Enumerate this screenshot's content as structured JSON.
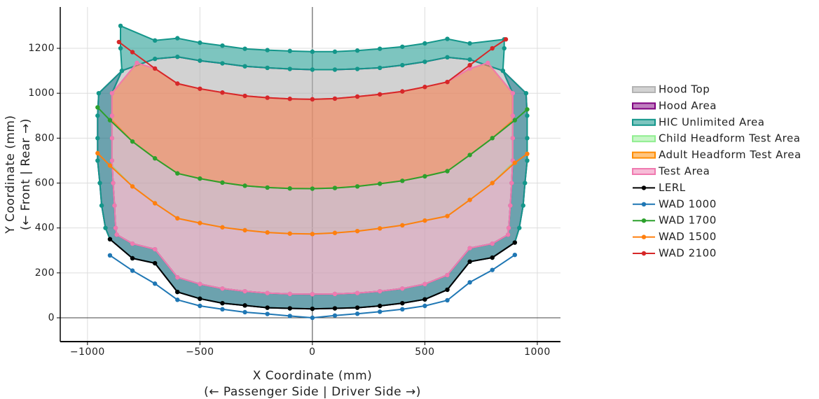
{
  "chart_data": {
    "type": "area-line",
    "xlabel": "X Coordinate (mm)",
    "xlabel_sub": "(← Passenger Side | Driver Side →)",
    "ylabel": "Y Coordinate (mm)",
    "ylabel_sub": "(← Front | Rear →)",
    "xlim": [
      -1121,
      1103
    ],
    "ylim": [
      -106,
      1384
    ],
    "xticks": [
      {
        "value": -1000,
        "label": "−1000"
      },
      {
        "value": -500,
        "label": "−500"
      },
      0,
      500,
      1000
    ],
    "yticks": [
      0,
      200,
      400,
      600,
      800,
      1000,
      1200
    ],
    "grid": true,
    "series": [
      {
        "name": "Hood Top",
        "color": "#b4b4b4",
        "fill": true,
        "fill_opacity": 0.6,
        "markers": false,
        "x": [
          -847,
          -700,
          -600,
          -500,
          -400,
          -300,
          -200,
          -100,
          0,
          100,
          200,
          300,
          400,
          500,
          600,
          700,
          847,
          891,
          891,
          891,
          891,
          886,
          880,
          873,
          870,
          800,
          700,
          600,
          500,
          400,
          300,
          200,
          100,
          0,
          -100,
          -200,
          -300,
          -400,
          -500,
          -600,
          -700,
          -800,
          -870,
          -875,
          -880,
          -886,
          -891,
          -891,
          -891,
          -891
        ],
        "y": [
          1100,
          1153,
          1162,
          1145,
          1133,
          1120,
          1113,
          1108,
          1105,
          1105,
          1108,
          1113,
          1125,
          1140,
          1160,
          1150,
          1100,
          1000,
          900,
          800,
          700,
          600,
          500,
          400,
          370,
          330,
          310,
          190,
          150,
          130,
          118,
          110,
          106,
          105,
          106,
          110,
          118,
          130,
          150,
          180,
          305,
          330,
          370,
          400,
          500,
          600,
          700,
          800,
          900,
          1000
        ]
      },
      {
        "name": "Hood Area",
        "color": "#800080",
        "fill": true,
        "fill_opacity": 0.3,
        "markers": false,
        "x": [
          -847,
          -700,
          -600,
          -500,
          -400,
          -300,
          -200,
          -100,
          0,
          100,
          200,
          300,
          400,
          500,
          600,
          700,
          847,
          950,
          955,
          955,
          955,
          945,
          937,
          920,
          900,
          800,
          700,
          600,
          500,
          400,
          300,
          200,
          100,
          0,
          -100,
          -200,
          -300,
          -400,
          -500,
          -600,
          -700,
          -800,
          -900,
          -920,
          -937,
          -945,
          -955,
          -955,
          -955,
          -950,
          null,
          -847,
          -700,
          -600,
          -500,
          -400,
          -300,
          -200,
          -100,
          0,
          100,
          200,
          300,
          400,
          500,
          600,
          700,
          847,
          891,
          891,
          891,
          891,
          886,
          880,
          873,
          870,
          800,
          700,
          600,
          500,
          400,
          300,
          200,
          100,
          0,
          -100,
          -200,
          -300,
          -400,
          -500,
          -600,
          -700,
          -800,
          -870,
          -875,
          -880,
          -886,
          -891,
          -891,
          -891,
          -891
        ],
        "y": [
          1100,
          1153,
          1162,
          1145,
          1133,
          1120,
          1113,
          1108,
          1105,
          1105,
          1108,
          1113,
          1125,
          1140,
          1160,
          1150,
          1100,
          1000,
          900,
          800,
          700,
          600,
          500,
          400,
          335,
          268,
          250,
          125,
          82,
          65,
          53,
          45,
          42,
          40,
          42,
          45,
          55,
          65,
          85,
          115,
          243,
          265,
          350,
          400,
          500,
          600,
          700,
          800,
          900,
          1000,
          null,
          1100,
          1153,
          1162,
          1145,
          1133,
          1120,
          1113,
          1108,
          1105,
          1105,
          1108,
          1113,
          1125,
          1140,
          1160,
          1150,
          1100,
          1000,
          900,
          800,
          700,
          600,
          500,
          400,
          370,
          330,
          310,
          190,
          150,
          130,
          118,
          110,
          106,
          105,
          106,
          110,
          118,
          130,
          150,
          180,
          305,
          330,
          370,
          400,
          500,
          600,
          700,
          800,
          900,
          1000
        ]
      },
      {
        "name": "HIC Unlimited Area",
        "color": "#13968a",
        "fill": true,
        "fill_opacity": 0.55,
        "markers": true,
        "x": [
          -853,
          -700,
          -600,
          -500,
          -400,
          -300,
          -200,
          -100,
          0,
          100,
          200,
          300,
          400,
          500,
          600,
          700,
          853,
          853,
          847,
          950,
          955,
          955,
          955,
          945,
          937,
          920,
          900,
          800,
          700,
          600,
          500,
          400,
          300,
          200,
          100,
          0,
          -100,
          -200,
          -300,
          -400,
          -500,
          -600,
          -700,
          -800,
          -900,
          -920,
          -937,
          -945,
          -955,
          -955,
          -955,
          -950,
          -847,
          -853,
          null,
          -847,
          -700,
          -600,
          -500,
          -400,
          -300,
          -200,
          -100,
          0,
          100,
          200,
          300,
          400,
          500,
          600,
          700,
          847,
          891,
          891,
          891,
          891,
          886,
          880,
          873,
          870,
          800,
          700,
          600,
          500,
          400,
          300,
          200,
          100,
          0,
          -100,
          -200,
          -300,
          -400,
          -500,
          -600,
          -700,
          -800,
          -870,
          -875,
          -880,
          -886,
          -891,
          -891,
          -891,
          -891
        ],
        "y": [
          1300,
          1235,
          1245,
          1225,
          1212,
          1198,
          1192,
          1188,
          1185,
          1185,
          1190,
          1198,
          1207,
          1222,
          1242,
          1222,
          1240,
          1200,
          1100,
          1000,
          900,
          800,
          700,
          600,
          500,
          400,
          335,
          268,
          250,
          125,
          82,
          65,
          53,
          45,
          42,
          40,
          42,
          45,
          55,
          65,
          85,
          115,
          243,
          265,
          350,
          400,
          500,
          600,
          700,
          800,
          900,
          1000,
          1100,
          1200,
          null,
          1100,
          1153,
          1162,
          1145,
          1133,
          1120,
          1113,
          1108,
          1105,
          1105,
          1108,
          1113,
          1125,
          1140,
          1160,
          1150,
          1100,
          1000,
          900,
          800,
          700,
          600,
          500,
          400,
          370,
          330,
          310,
          190,
          150,
          130,
          118,
          110,
          106,
          105,
          106,
          110,
          118,
          130,
          150,
          180,
          305,
          330,
          370,
          400,
          500,
          600,
          700,
          800,
          900,
          1000
        ]
      },
      {
        "name": "Child Headform Test Area",
        "color": "#90ee90",
        "fill": true,
        "fill_opacity": 0.15,
        "markers": false,
        "x": [
          -891,
          -800,
          -700,
          -600,
          -500,
          -400,
          -300,
          -200,
          -100,
          0,
          100,
          200,
          300,
          400,
          500,
          600,
          700,
          800,
          891,
          891,
          800,
          700,
          600,
          500,
          400,
          300,
          200,
          100,
          0,
          -100,
          -200,
          -300,
          -400,
          -500,
          -600,
          -700,
          -800,
          -891
        ],
        "y": [
          880,
          785,
          710,
          643,
          620,
          602,
          588,
          580,
          576,
          575,
          578,
          585,
          597,
          610,
          630,
          653,
          725,
          800,
          880,
          690,
          600,
          525,
          453,
          433,
          412,
          398,
          386,
          378,
          373,
          375,
          380,
          390,
          403,
          422,
          443,
          510,
          585,
          678
        ]
      },
      {
        "name": "Adult Headform Test Area",
        "color": "#ff8c00",
        "fill": true,
        "fill_opacity": 0.45,
        "markers": false,
        "x": [
          -891,
          -780,
          -700,
          -600,
          -500,
          -400,
          -300,
          -200,
          -100,
          0,
          100,
          200,
          300,
          400,
          500,
          600,
          700,
          780,
          891,
          891,
          800,
          700,
          600,
          500,
          400,
          300,
          200,
          100,
          0,
          -100,
          -200,
          -300,
          -400,
          -500,
          -600,
          -700,
          -800,
          -891
        ],
        "y": [
          1000,
          1135,
          1110,
          1043,
          1020,
          1003,
          988,
          980,
          975,
          973,
          976,
          985,
          995,
          1008,
          1028,
          1050,
          1110,
          1135,
          1000,
          880,
          800,
          725,
          653,
          630,
          610,
          597,
          585,
          578,
          575,
          576,
          580,
          588,
          602,
          620,
          643,
          710,
          785,
          880
        ]
      },
      {
        "name": "Test Area",
        "color": "#f07ab0",
        "fill": true,
        "fill_opacity": 0.3,
        "markers": true,
        "x": [
          -780,
          -700,
          -600,
          -500,
          -400,
          -300,
          -200,
          -100,
          0,
          100,
          200,
          300,
          400,
          500,
          600,
          700,
          780,
          891,
          891,
          891,
          891,
          886,
          880,
          873,
          870,
          800,
          700,
          600,
          500,
          400,
          300,
          200,
          100,
          0,
          -100,
          -200,
          -300,
          -400,
          -500,
          -600,
          -700,
          -800,
          -870,
          -875,
          -880,
          -886,
          -891,
          -891,
          -891,
          -891
        ],
        "y": [
          1135,
          1110,
          1043,
          1020,
          1003,
          988,
          980,
          975,
          973,
          976,
          985,
          995,
          1008,
          1028,
          1050,
          1110,
          1135,
          1000,
          900,
          800,
          700,
          600,
          500,
          400,
          370,
          330,
          310,
          190,
          150,
          130,
          118,
          110,
          106,
          105,
          106,
          110,
          118,
          130,
          150,
          180,
          305,
          330,
          370,
          400,
          500,
          600,
          700,
          800,
          900,
          1000
        ]
      },
      {
        "name": "LERL",
        "color": "#000000",
        "fill": false,
        "markers": true,
        "x": [
          -900,
          -800,
          -700,
          -600,
          -500,
          -400,
          -300,
          -200,
          -100,
          0,
          100,
          200,
          300,
          400,
          500,
          600,
          700,
          800,
          900
        ],
        "y": [
          350,
          265,
          243,
          115,
          85,
          65,
          55,
          45,
          42,
          40,
          42,
          45,
          53,
          65,
          82,
          125,
          250,
          268,
          335
        ]
      },
      {
        "name": "WAD 1000",
        "color": "#1f77b4",
        "fill": false,
        "markers": true,
        "x": [
          -900,
          -800,
          -700,
          -600,
          -500,
          -400,
          -300,
          -200,
          -100,
          0,
          100,
          200,
          300,
          400,
          500,
          600,
          700,
          800,
          900
        ],
        "y": [
          278,
          210,
          152,
          80,
          53,
          38,
          25,
          17,
          8,
          0,
          10,
          18,
          27,
          38,
          53,
          78,
          158,
          213,
          280
        ]
      },
      {
        "name": "WAD 1700",
        "color": "#2ca02c",
        "fill": false,
        "markers": true,
        "x": [
          -955,
          -900,
          -800,
          -700,
          -600,
          -500,
          -400,
          -300,
          -200,
          -100,
          0,
          100,
          200,
          300,
          400,
          500,
          600,
          700,
          800,
          900,
          955
        ],
        "y": [
          937,
          880,
          785,
          710,
          643,
          620,
          602,
          588,
          580,
          576,
          575,
          578,
          585,
          597,
          610,
          630,
          653,
          725,
          800,
          880,
          928
        ]
      },
      {
        "name": "WAD 1500",
        "color": "#ff7f0e",
        "fill": false,
        "markers": true,
        "x": [
          -955,
          -900,
          -800,
          -700,
          -600,
          -500,
          -400,
          -300,
          -200,
          -100,
          0,
          100,
          200,
          300,
          400,
          500,
          600,
          700,
          800,
          900,
          955
        ],
        "y": [
          733,
          678,
          585,
          510,
          443,
          422,
          403,
          390,
          380,
          375,
          373,
          378,
          386,
          398,
          412,
          433,
          453,
          525,
          600,
          690,
          730
        ]
      },
      {
        "name": "WAD 2100",
        "color": "#d62728",
        "fill": false,
        "markers": true,
        "x": [
          -860,
          -800,
          -700,
          -600,
          -500,
          -400,
          -300,
          -200,
          -100,
          0,
          100,
          200,
          300,
          400,
          500,
          600,
          700,
          800,
          860
        ],
        "y": [
          1228,
          1183,
          1110,
          1043,
          1020,
          1003,
          988,
          980,
          975,
          973,
          976,
          985,
          995,
          1008,
          1028,
          1050,
          1125,
          1200,
          1240
        ]
      }
    ]
  }
}
